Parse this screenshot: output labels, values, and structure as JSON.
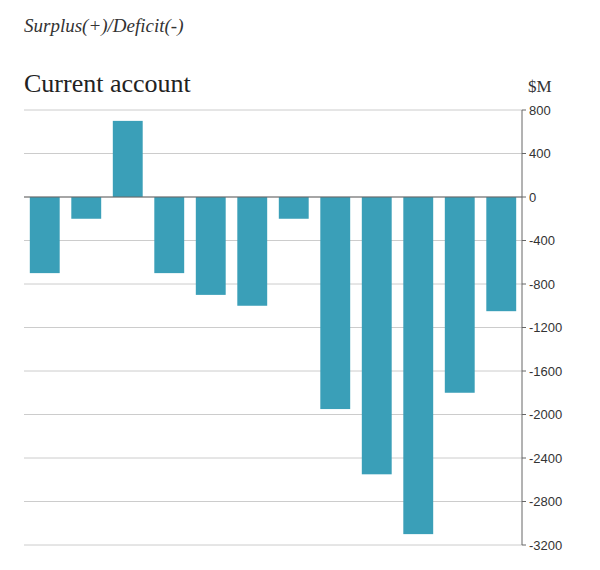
{
  "chart_data": {
    "type": "bar",
    "title": "Current account",
    "subtitle": "Surplus(+)/Deficit(-)",
    "ylabel": "$M",
    "categories": [
      null,
      null,
      null,
      null,
      null,
      null,
      null,
      null,
      null,
      null,
      null,
      null
    ],
    "values": [
      -700,
      -200,
      700,
      -700,
      -900,
      -1000,
      -200,
      -1950,
      -2550,
      -3100,
      -1800,
      -1050
    ],
    "color": "#3a9fb8",
    "ylim": [
      -3200,
      800
    ],
    "yticks": [
      800,
      400,
      0,
      -400,
      -800,
      -1200,
      -1600,
      -2000,
      -2400,
      -2800,
      -3200
    ],
    "grid": true,
    "tick_labels": "y"
  }
}
